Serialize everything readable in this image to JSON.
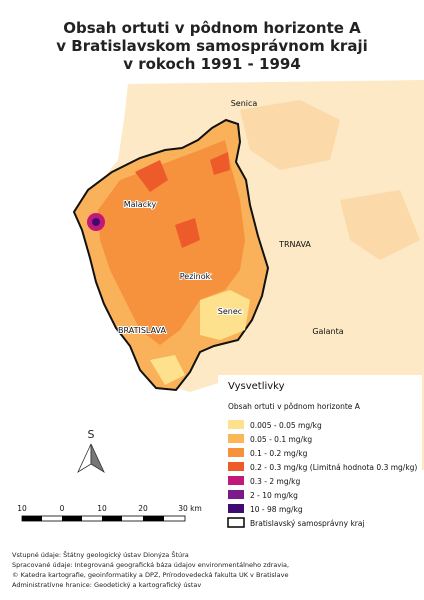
{
  "title": [
    "Obsah ortuti v pôdnom horizonte A",
    "v Bratislavskom samosprávnom kraji",
    "v rokoch 1991 - 1994"
  ],
  "places": {
    "senica": "Senica",
    "malacky": "Malacky",
    "trnava": "TRNAVA",
    "pezinok": "Pezinok",
    "senec": "Senec",
    "bratislava": "BRATISLAVA",
    "galanta": "Galanta"
  },
  "legend": {
    "title": "Vysvetlivky",
    "subtitle": "Obsah ortuti v pôdnom horizonte A",
    "items": [
      {
        "label": "0.005 - 0.05 mg/kg",
        "color": "#fde18c"
      },
      {
        "label": "0.05 - 0.1 mg/kg",
        "color": "#fbb657"
      },
      {
        "label": "0.1 - 0.2 mg/kg",
        "color": "#f6913e"
      },
      {
        "label": "0.2 - 0.3 mg/kg (Limitná hodnota 0.3 mg/kg)",
        "color": "#ee5b2b"
      },
      {
        "label": "0.3 - 2 mg/kg",
        "color": "#c2187a"
      },
      {
        "label": "2 - 10 mg/kg",
        "color": "#7b1b8b"
      },
      {
        "label": "10 - 98 mg/kg",
        "color": "#3f0b72"
      },
      {
        "label": "Bratislavský samosprávny kraj",
        "color": "#ffffff"
      }
    ]
  },
  "north": "S",
  "scale": [
    "10",
    "0",
    "10",
    "20",
    "30 km"
  ],
  "credits": [
    "Vstupné údaje: Štátny geologický ústav Dionýza Štúra",
    "Spracované údaje: Integrovaná geografická báza údajov environmentálneho zdravia,",
    "© Katedra kartografie, geoinformatiky a DPZ, Prírodovedecká fakulta UK v Bratislave",
    "Administratívne hranice: Geodetický a kartografický ústav"
  ]
}
